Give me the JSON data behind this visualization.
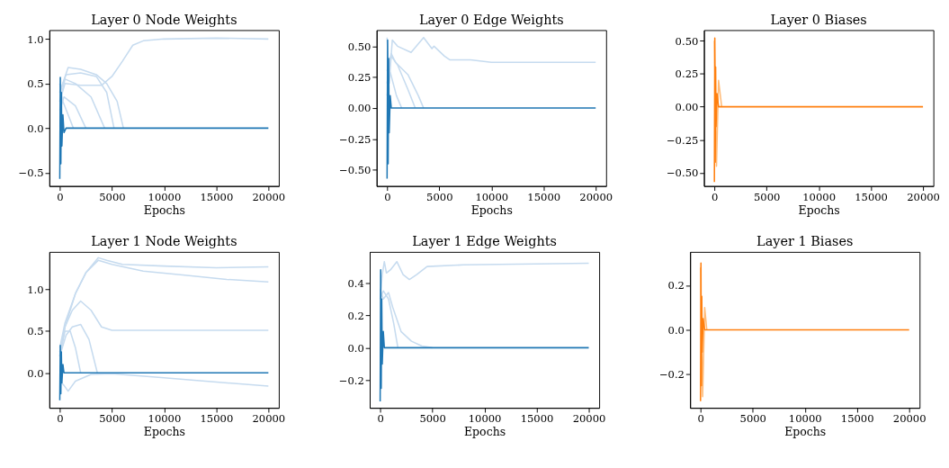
{
  "chart_data": [
    {
      "type": "line",
      "title": "Layer 0 Node Weights",
      "xlabel": "Epochs",
      "xlim": [
        -1000,
        21000
      ],
      "xticks": [
        0,
        5000,
        10000,
        15000,
        20000
      ],
      "ylim": [
        -0.65,
        1.1
      ],
      "yticks": [
        {
          "value": -0.5,
          "label": "−0.5"
        },
        {
          "value": 0,
          "label": "0.0"
        },
        {
          "value": 0.5,
          "label": "0.5"
        },
        {
          "value": 1,
          "label": "1.0"
        }
      ],
      "grid": false,
      "legend": false,
      "series": [
        {
          "color": "#c6dbef",
          "x": [
            0,
            500,
            2000,
            4000,
            5000,
            6000,
            7000,
            8000,
            10000,
            15000,
            20000
          ],
          "values": [
            0.3,
            0.5,
            0.48,
            0.48,
            0.58,
            0.75,
            0.93,
            0.98,
            1.0,
            1.01,
            1.0
          ]
        },
        {
          "color": "#c6dbef",
          "x": [
            0,
            800,
            2000,
            3500,
            4500,
            5500,
            6100
          ],
          "values": [
            0.4,
            0.68,
            0.66,
            0.6,
            0.5,
            0.3,
            0
          ]
        },
        {
          "color": "#c6dbef",
          "x": [
            0,
            600,
            2000,
            3500,
            4500,
            5200
          ],
          "values": [
            0.4,
            0.6,
            0.62,
            0.58,
            0.4,
            0
          ]
        },
        {
          "color": "#c6dbef",
          "x": [
            0,
            500,
            1500,
            3000,
            4300
          ],
          "values": [
            0.3,
            0.55,
            0.5,
            0.35,
            0
          ]
        },
        {
          "color": "#c6dbef",
          "x": [
            0,
            400,
            1500,
            2500
          ],
          "values": [
            0.2,
            0.35,
            0.25,
            0
          ]
        },
        {
          "color": "#c6dbef",
          "x": [
            0,
            300,
            800,
            1300
          ],
          "values": [
            0.5,
            0.3,
            0.15,
            0
          ]
        },
        {
          "color": "#1f77b4",
          "x": [
            0,
            50,
            100,
            150,
            200,
            300,
            400,
            600,
            20000
          ],
          "values": [
            -0.57,
            0.57,
            -0.4,
            0.4,
            -0.2,
            0.15,
            -0.05,
            0,
            0
          ]
        }
      ]
    },
    {
      "type": "line",
      "title": "Layer 0 Edge Weights",
      "xlabel": "Epochs",
      "xlim": [
        -1000,
        21000
      ],
      "xticks": [
        0,
        5000,
        10000,
        15000,
        20000
      ],
      "ylim": [
        -0.63,
        0.63
      ],
      "yticks": [
        {
          "value": -0.5,
          "label": "−0.50"
        },
        {
          "value": -0.25,
          "label": "−0.25"
        },
        {
          "value": 0,
          "label": "0.00"
        },
        {
          "value": 0.25,
          "label": "0.25"
        },
        {
          "value": 0.5,
          "label": "0.50"
        }
      ],
      "grid": false,
      "legend": false,
      "series": [
        {
          "color": "#c6dbef",
          "x": [
            0,
            200,
            500,
            1000,
            2300,
            3500,
            4300,
            4500,
            5500,
            6000,
            8000,
            10000,
            15000,
            20000
          ],
          "values": [
            0.57,
            0.2,
            0.55,
            0.5,
            0.45,
            0.57,
            0.48,
            0.5,
            0.42,
            0.39,
            0.39,
            0.37,
            0.37,
            0.37
          ]
        },
        {
          "color": "#c6dbef",
          "x": [
            0,
            400,
            800,
            2000,
            3000,
            3500
          ],
          "values": [
            0.3,
            0.44,
            0.37,
            0.27,
            0.1,
            0
          ]
        },
        {
          "color": "#c6dbef",
          "x": [
            0,
            400,
            1000,
            2000,
            2700
          ],
          "values": [
            0.2,
            0.42,
            0.35,
            0.15,
            0
          ]
        },
        {
          "color": "#c6dbef",
          "x": [
            0,
            300,
            900,
            1400
          ],
          "values": [
            0.1,
            0.29,
            0.1,
            0
          ]
        },
        {
          "color": "#1f77b4",
          "x": [
            0,
            50,
            100,
            150,
            200,
            300,
            400,
            20000
          ],
          "values": [
            -0.57,
            0.55,
            -0.45,
            0.4,
            -0.2,
            0.1,
            0,
            0
          ]
        }
      ]
    },
    {
      "type": "line",
      "title": "Layer 0 Biases",
      "xlabel": "Epochs",
      "xlim": [
        -1000,
        21000
      ],
      "xticks": [
        0,
        5000,
        10000,
        15000,
        20000
      ],
      "ylim": [
        -0.6,
        0.58
      ],
      "yticks": [
        {
          "value": -0.5,
          "label": "−0.50"
        },
        {
          "value": -0.25,
          "label": "−0.25"
        },
        {
          "value": 0,
          "label": "0.00"
        },
        {
          "value": 0.25,
          "label": "0.25"
        },
        {
          "value": 0.5,
          "label": "0.50"
        }
      ],
      "grid": false,
      "legend": false,
      "series": [
        {
          "color": "#ffbb78",
          "x": [
            0,
            200,
            400,
            700
          ],
          "values": [
            0.5,
            -0.45,
            0.2,
            0
          ]
        },
        {
          "color": "#ff7f0e",
          "x": [
            0,
            40,
            80,
            120,
            160,
            250,
            400,
            20000
          ],
          "values": [
            -0.57,
            0.52,
            -0.42,
            0.3,
            -0.15,
            0.1,
            0,
            0
          ]
        }
      ]
    },
    {
      "type": "line",
      "title": "Layer 1 Node Weights",
      "xlabel": "Epochs",
      "xlim": [
        -1000,
        21000
      ],
      "xticks": [
        0,
        5000,
        10000,
        15000,
        20000
      ],
      "ylim": [
        -0.42,
        1.45
      ],
      "yticks": [
        {
          "value": 0,
          "label": "0.0"
        },
        {
          "value": 0.5,
          "label": "0.5"
        },
        {
          "value": 1,
          "label": "1.0"
        }
      ],
      "grid": false,
      "legend": false,
      "series": [
        {
          "color": "#c6dbef",
          "x": [
            0,
            500,
            1500,
            2500,
            3700,
            4500,
            6000,
            10000,
            15000,
            20000
          ],
          "values": [
            0.3,
            0.6,
            0.95,
            1.2,
            1.38,
            1.35,
            1.3,
            1.28,
            1.26,
            1.27
          ]
        },
        {
          "color": "#c6dbef",
          "x": [
            0,
            500,
            1500,
            2500,
            3700,
            5000,
            8000,
            12000,
            16000,
            20000
          ],
          "values": [
            0.25,
            0.55,
            0.95,
            1.2,
            1.35,
            1.3,
            1.22,
            1.17,
            1.12,
            1.09
          ]
        },
        {
          "color": "#c6dbef",
          "x": [
            0,
            500,
            1200,
            2000,
            3000,
            4000,
            5000,
            10000,
            20000
          ],
          "values": [
            0.2,
            0.55,
            0.75,
            0.86,
            0.75,
            0.55,
            0.51,
            0.51,
            0.51
          ]
        },
        {
          "color": "#c6dbef",
          "x": [
            0,
            600,
            1200,
            2000,
            2800,
            3600
          ],
          "values": [
            0.2,
            0.45,
            0.55,
            0.58,
            0.4,
            0
          ]
        },
        {
          "color": "#c6dbef",
          "x": [
            0,
            500,
            1000,
            1500,
            2000
          ],
          "values": [
            0.2,
            0.5,
            0.5,
            0.3,
            0
          ]
        },
        {
          "color": "#c6dbef",
          "x": [
            0,
            400,
            800,
            1500,
            3000,
            5000,
            10000,
            15000,
            20000
          ],
          "values": [
            -0.1,
            -0.15,
            -0.22,
            -0.1,
            -0.02,
            -0.01,
            -0.06,
            -0.11,
            -0.16
          ]
        },
        {
          "color": "#1f77b4",
          "x": [
            0,
            50,
            100,
            150,
            200,
            300,
            400,
            20000
          ],
          "values": [
            -0.33,
            0.33,
            -0.25,
            0.25,
            -0.12,
            0.1,
            0,
            0
          ]
        }
      ]
    },
    {
      "type": "line",
      "title": "Layer 1 Edge Weights",
      "xlabel": "Epochs",
      "xlim": [
        -1000,
        21000
      ],
      "xticks": [
        0,
        5000,
        10000,
        15000,
        20000
      ],
      "ylim": [
        -0.37,
        0.59
      ],
      "yticks": [
        {
          "value": -0.2,
          "label": "−0.2"
        },
        {
          "value": 0,
          "label": "0.0"
        },
        {
          "value": 0.2,
          "label": "0.2"
        },
        {
          "value": 0.4,
          "label": "0.4"
        }
      ],
      "grid": false,
      "legend": false,
      "series": [
        {
          "color": "#c6dbef",
          "x": [
            0,
            200,
            400,
            600,
            1000,
            1600,
            2200,
            2800,
            3500,
            4500,
            8000,
            20000
          ],
          "values": [
            0.3,
            0.45,
            0.53,
            0.46,
            0.48,
            0.53,
            0.45,
            0.42,
            0.45,
            0.5,
            0.51,
            0.52
          ]
        },
        {
          "color": "#c6dbef",
          "x": [
            0,
            300,
            800,
            1200,
            2000,
            3000,
            4000,
            5000
          ],
          "values": [
            0.36,
            0.3,
            0.34,
            0.25,
            0.1,
            0.04,
            0.01,
            0
          ]
        },
        {
          "color": "#c6dbef",
          "x": [
            0,
            300,
            800,
            1300,
            1700
          ],
          "values": [
            0.3,
            0.35,
            0.3,
            0.15,
            0
          ]
        },
        {
          "color": "#1f77b4",
          "x": [
            0,
            50,
            100,
            150,
            200,
            300,
            400,
            20000
          ],
          "values": [
            -0.33,
            0.48,
            -0.25,
            0.3,
            -0.1,
            0.1,
            0,
            0
          ]
        }
      ]
    },
    {
      "type": "line",
      "title": "Layer 1 Biases",
      "xlabel": "Epochs",
      "xlim": [
        -1000,
        21000
      ],
      "xticks": [
        0,
        5000,
        10000,
        15000,
        20000
      ],
      "ylim": [
        -0.35,
        0.35
      ],
      "yticks": [
        {
          "value": -0.2,
          "label": "−0.2"
        },
        {
          "value": 0,
          "label": "0.0"
        },
        {
          "value": 0.2,
          "label": "0.2"
        }
      ],
      "grid": false,
      "legend": false,
      "series": [
        {
          "color": "#ffbb78",
          "x": [
            0,
            200,
            400,
            600
          ],
          "values": [
            0.28,
            -0.3,
            0.1,
            0
          ]
        },
        {
          "color": "#ff7f0e",
          "x": [
            0,
            40,
            80,
            120,
            160,
            250,
            400,
            20000
          ],
          "values": [
            -0.32,
            0.3,
            -0.25,
            0.15,
            -0.1,
            0.05,
            0,
            0
          ]
        }
      ]
    }
  ]
}
